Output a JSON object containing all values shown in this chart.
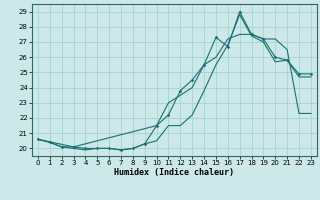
{
  "xlabel": "Humidex (Indice chaleur)",
  "bg_color": "#cce8e8",
  "grid_color": "#aad4d4",
  "line_color": "#1a7070",
  "xlim": [
    -0.5,
    23.5
  ],
  "ylim": [
    19.5,
    29.5
  ],
  "xticks": [
    0,
    1,
    2,
    3,
    4,
    5,
    6,
    7,
    8,
    9,
    10,
    11,
    12,
    13,
    14,
    15,
    16,
    17,
    18,
    19,
    20,
    21,
    22,
    23
  ],
  "yticks": [
    20,
    21,
    22,
    23,
    24,
    25,
    26,
    27,
    28,
    29
  ],
  "line1_x": [
    0,
    1,
    2,
    3,
    4,
    5,
    6,
    7,
    8,
    9,
    10,
    11,
    12,
    13,
    14,
    15,
    16,
    17,
    18,
    19,
    20,
    21,
    22,
    23
  ],
  "line1_y": [
    20.6,
    20.4,
    20.1,
    20.1,
    20.0,
    20.0,
    20.0,
    19.9,
    20.0,
    20.3,
    21.5,
    22.2,
    23.8,
    24.5,
    25.5,
    27.3,
    26.7,
    29.0,
    27.5,
    27.2,
    26.0,
    25.8,
    24.9,
    24.9
  ],
  "line2_x": [
    0,
    3,
    10,
    11,
    12,
    13,
    14,
    15,
    16,
    17,
    18,
    19,
    20,
    21,
    22,
    23
  ],
  "line2_y": [
    20.6,
    20.1,
    21.5,
    23.0,
    23.5,
    24.0,
    25.5,
    26.0,
    27.2,
    27.5,
    27.5,
    27.2,
    27.2,
    26.5,
    22.3,
    22.3
  ],
  "line3_x": [
    0,
    1,
    2,
    3,
    4,
    5,
    6,
    7,
    8,
    9,
    10,
    11,
    12,
    13,
    14,
    15,
    16,
    17,
    18,
    19,
    20,
    21,
    22,
    23
  ],
  "line3_y": [
    20.6,
    20.4,
    20.1,
    20.0,
    19.9,
    20.0,
    20.0,
    19.9,
    20.0,
    20.3,
    20.5,
    21.5,
    21.5,
    22.2,
    23.8,
    25.5,
    26.8,
    28.8,
    27.4,
    27.0,
    25.7,
    25.8,
    24.7,
    24.7
  ]
}
